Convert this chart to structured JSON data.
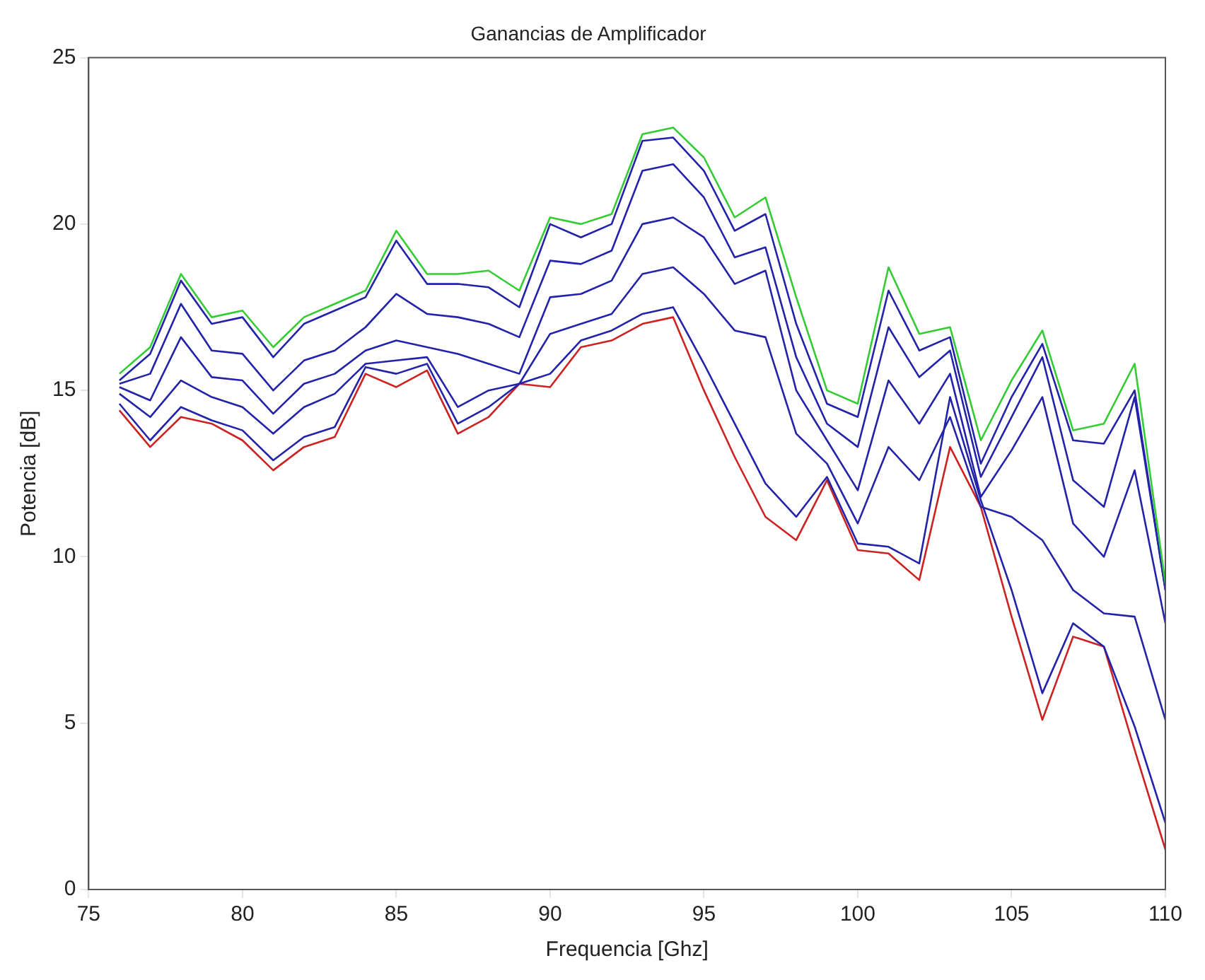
{
  "chart_data": {
    "type": "line",
    "title": "Ganancias de Amplificador",
    "xlabel": "Frequencia [Ghz]",
    "ylabel": "Potencia [dB]",
    "x": [
      76,
      77,
      78,
      79,
      80,
      81,
      82,
      83,
      84,
      85,
      86,
      87,
      88,
      89,
      90,
      91,
      92,
      93,
      94,
      95,
      96,
      97,
      98,
      99,
      100,
      101,
      102,
      103,
      104,
      105,
      106,
      107,
      108,
      109,
      110
    ],
    "xlim": [
      75,
      110
    ],
    "xticks": [
      75,
      80,
      85,
      90,
      95,
      100,
      105,
      110
    ],
    "ylim": [
      0,
      25
    ],
    "yticks": [
      0,
      5,
      10,
      15,
      20,
      25
    ],
    "grid": false,
    "legend": false,
    "marker": "none",
    "line_style": "solid",
    "series": [
      {
        "color": "#33cc33",
        "values": [
          15.5,
          16.3,
          18.5,
          17.2,
          17.4,
          16.3,
          17.2,
          17.6,
          18.0,
          19.8,
          18.5,
          18.5,
          18.6,
          18.0,
          20.2,
          20.0,
          20.3,
          22.7,
          22.9,
          22.0,
          20.2,
          20.8,
          17.8,
          15.0,
          14.6,
          18.7,
          16.7,
          16.9,
          13.5,
          15.3,
          16.8,
          13.8,
          14.0,
          15.8,
          9.2
        ]
      },
      {
        "color": "#2222aa",
        "values": [
          15.3,
          16.1,
          18.3,
          17.0,
          17.2,
          16.0,
          17.0,
          17.4,
          17.8,
          19.5,
          18.2,
          18.2,
          18.1,
          17.5,
          20.0,
          19.6,
          20.0,
          22.5,
          22.6,
          21.6,
          19.8,
          20.3,
          17.0,
          14.6,
          14.2,
          18.0,
          16.2,
          16.6,
          12.8,
          14.8,
          16.4,
          13.5,
          13.4,
          15.0,
          9.0
        ]
      },
      {
        "color": "#2222aa",
        "values": [
          15.2,
          15.5,
          17.6,
          16.2,
          16.1,
          15.0,
          15.9,
          16.2,
          16.9,
          17.9,
          17.3,
          17.2,
          17.0,
          16.6,
          18.9,
          18.8,
          19.2,
          21.6,
          21.8,
          20.8,
          19.0,
          19.3,
          16.0,
          14.0,
          13.3,
          16.9,
          15.4,
          16.2,
          12.4,
          14.2,
          16.0,
          12.3,
          11.5,
          14.8,
          9.0
        ]
      },
      {
        "color": "#2222aa",
        "values": [
          15.1,
          14.7,
          16.6,
          15.4,
          15.3,
          14.3,
          15.2,
          15.5,
          16.2,
          16.5,
          16.3,
          16.1,
          15.8,
          15.5,
          17.8,
          17.9,
          18.3,
          20.0,
          20.2,
          19.6,
          18.2,
          18.6,
          15.0,
          13.5,
          12.0,
          15.3,
          14.0,
          15.5,
          11.8,
          13.2,
          14.8,
          11.0,
          10.0,
          12.6,
          8.0
        ]
      },
      {
        "color": "#2222aa",
        "values": [
          14.9,
          14.2,
          15.3,
          14.8,
          14.5,
          13.7,
          14.5,
          14.9,
          15.8,
          15.9,
          16.0,
          14.5,
          15.0,
          15.2,
          16.7,
          17.0,
          17.3,
          18.5,
          18.7,
          17.9,
          16.8,
          16.6,
          13.7,
          12.8,
          11.0,
          13.3,
          12.3,
          14.2,
          11.5,
          11.2,
          10.5,
          9.0,
          8.3,
          8.2,
          5.1
        ]
      },
      {
        "color": "#2222aa",
        "values": [
          14.6,
          13.5,
          14.5,
          14.1,
          13.8,
          12.9,
          13.6,
          13.9,
          15.7,
          15.5,
          15.8,
          14.0,
          14.5,
          15.2,
          15.5,
          16.5,
          16.8,
          17.3,
          17.5,
          15.8,
          14.0,
          12.2,
          11.2,
          12.4,
          10.4,
          10.3,
          9.8,
          14.8,
          11.7,
          9.0,
          5.9,
          8.0,
          7.3,
          4.9,
          2.0
        ]
      },
      {
        "color": "#cc2222",
        "values": [
          14.4,
          13.3,
          14.2,
          14.0,
          13.5,
          12.6,
          13.3,
          13.6,
          15.5,
          15.1,
          15.6,
          13.7,
          14.2,
          15.2,
          15.1,
          16.3,
          16.5,
          17.0,
          17.2,
          15.0,
          13.0,
          11.2,
          10.5,
          12.3,
          10.2,
          10.1,
          9.3,
          13.3,
          11.5,
          8.2,
          5.1,
          7.6,
          7.3,
          4.2,
          1.2
        ]
      }
    ]
  }
}
